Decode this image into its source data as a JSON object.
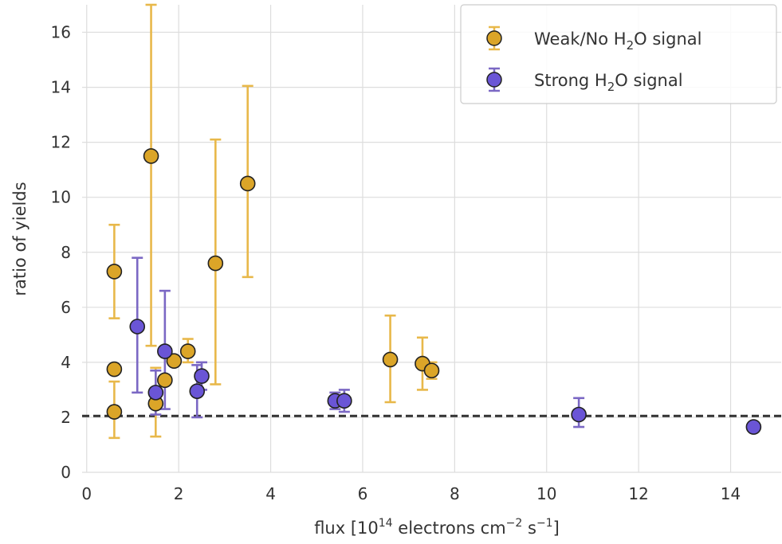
{
  "chart_data": {
    "type": "scatter",
    "xlabel": {
      "base": "flux [10",
      "sup1": "14",
      "mid1": " electrons cm",
      "sup2": "−2",
      "mid2": " s",
      "sup3": "−1",
      "end": "]"
    },
    "ylabel": "ratio of yields",
    "xlim": [
      -0.1,
      15.1
    ],
    "ylim": [
      0,
      17
    ],
    "xticks": [
      0,
      2,
      4,
      6,
      8,
      10,
      12,
      14
    ],
    "yticks": [
      0,
      2,
      4,
      6,
      8,
      10,
      12,
      14,
      16
    ],
    "grid": true,
    "legend_position": "top-right",
    "reference_line": {
      "y": 2.05,
      "style": "dashed",
      "color": "#333333"
    },
    "series": [
      {
        "name": {
          "pre": "Weak/No H",
          "sub": "2",
          "post": "O signal"
        },
        "color": "#dba528",
        "error_color": "#e8b84a",
        "points": [
          {
            "x": 0.6,
            "y": 7.3,
            "ylo": 5.6,
            "yhi": 9.0
          },
          {
            "x": 0.6,
            "y": 3.75,
            "ylo": null,
            "yhi": null
          },
          {
            "x": 0.6,
            "y": 2.2,
            "ylo": 1.25,
            "yhi": 3.3
          },
          {
            "x": 1.4,
            "y": 11.5,
            "ylo": 4.6,
            "yhi": 17.0
          },
          {
            "x": 1.5,
            "y": 2.5,
            "ylo": 1.3,
            "yhi": 3.8
          },
          {
            "x": 1.7,
            "y": 3.35,
            "ylo": null,
            "yhi": null
          },
          {
            "x": 1.9,
            "y": 4.05,
            "ylo": null,
            "yhi": null
          },
          {
            "x": 2.2,
            "y": 4.4,
            "ylo": 4.0,
            "yhi": 4.85
          },
          {
            "x": 2.8,
            "y": 7.6,
            "ylo": 3.2,
            "yhi": 12.1
          },
          {
            "x": 3.5,
            "y": 10.5,
            "ylo": 7.1,
            "yhi": 14.05
          },
          {
            "x": 6.6,
            "y": 4.1,
            "ylo": 2.55,
            "yhi": 5.7
          },
          {
            "x": 7.3,
            "y": 3.95,
            "ylo": 3.0,
            "yhi": 4.9
          },
          {
            "x": 7.5,
            "y": 3.7,
            "ylo": 3.4,
            "yhi": 4.0
          }
        ]
      },
      {
        "name": {
          "pre": "Strong H",
          "sub": "2",
          "post": "O signal"
        },
        "color": "#6a55d6",
        "error_color": "#7b68c4",
        "points": [
          {
            "x": 1.1,
            "y": 5.3,
            "ylo": 2.9,
            "yhi": 7.8
          },
          {
            "x": 1.5,
            "y": 2.9,
            "ylo": 2.1,
            "yhi": 3.7
          },
          {
            "x": 1.7,
            "y": 4.4,
            "ylo": 2.3,
            "yhi": 6.6
          },
          {
            "x": 2.4,
            "y": 2.95,
            "ylo": 2.0,
            "yhi": 3.9
          },
          {
            "x": 2.5,
            "y": 3.5,
            "ylo": 3.0,
            "yhi": 4.0
          },
          {
            "x": 5.4,
            "y": 2.6,
            "ylo": 2.3,
            "yhi": 2.9
          },
          {
            "x": 5.6,
            "y": 2.6,
            "ylo": 2.2,
            "yhi": 3.0
          },
          {
            "x": 10.7,
            "y": 2.1,
            "ylo": 1.65,
            "yhi": 2.7
          },
          {
            "x": 14.5,
            "y": 1.65,
            "ylo": 1.5,
            "yhi": 1.8
          }
        ]
      }
    ]
  }
}
